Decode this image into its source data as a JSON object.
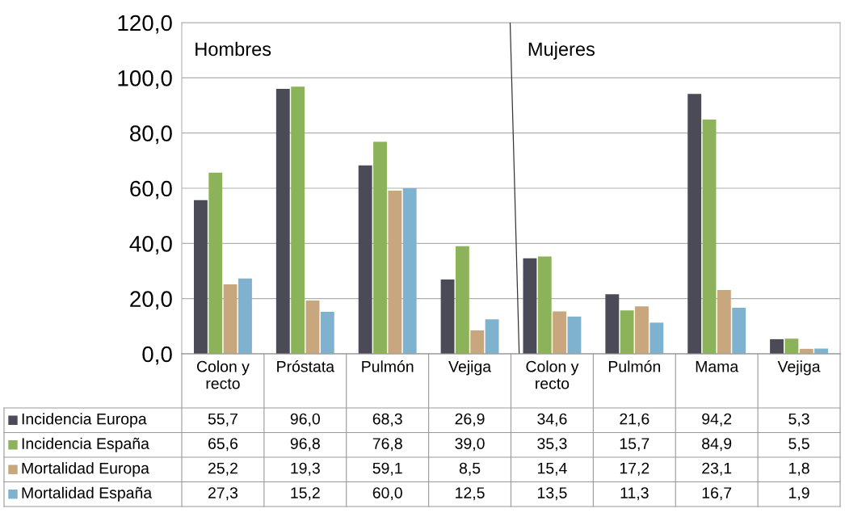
{
  "chart_data": {
    "type": "bar",
    "categories": [
      "Colon y\nrecto",
      "Próstata",
      "Pulmón",
      "Vejiga",
      "Colon y\nrecto",
      "Pulmón",
      "Mama",
      "Vejiga"
    ],
    "series": [
      {
        "name": "Incidencia Europa",
        "color": "#4b4b57",
        "values": [
          55.7,
          96.0,
          68.3,
          26.9,
          34.6,
          21.6,
          94.2,
          5.3
        ],
        "value_labels": [
          "55,7",
          "96,0",
          "68,3",
          "26,9",
          "34,6",
          "21,6",
          "94,2",
          "5,3"
        ]
      },
      {
        "name": "Incidencia España",
        "color": "#8db35a",
        "values": [
          65.6,
          96.8,
          76.8,
          39.0,
          35.3,
          15.7,
          84.9,
          5.5
        ],
        "value_labels": [
          "65,6",
          "96,8",
          "76,8",
          "39,0",
          "35,3",
          "15,7",
          "84,9",
          "5,5"
        ]
      },
      {
        "name": "Mortalidad Europa",
        "color": "#c8a67e",
        "values": [
          25.2,
          19.3,
          59.1,
          8.5,
          15.4,
          17.2,
          23.1,
          1.8
        ],
        "value_labels": [
          "25,2",
          "19,3",
          "59,1",
          "8,5",
          "15,4",
          "17,2",
          "23,1",
          "1,8"
        ]
      },
      {
        "name": "Mortalidad España",
        "color": "#7fb2cf",
        "values": [
          27.3,
          15.2,
          60.0,
          12.5,
          13.5,
          11.3,
          16.7,
          1.9
        ],
        "value_labels": [
          "27,3",
          "15,2",
          "60,0",
          "12,5",
          "13,5",
          "11,3",
          "16,7",
          "1,9"
        ]
      }
    ],
    "ylim": [
      0,
      120
    ],
    "yticks": [
      {
        "value": 0,
        "label": "0,0"
      },
      {
        "value": 20,
        "label": "20,0"
      },
      {
        "value": 40,
        "label": "40,0"
      },
      {
        "value": 60,
        "label": "60,0"
      },
      {
        "value": 80,
        "label": "80,0"
      },
      {
        "value": 100,
        "label": "100,0"
      },
      {
        "value": 120,
        "label": "120,0"
      }
    ],
    "grid": "y",
    "legend": "bottom left",
    "annotations": [
      "Hombres",
      "Mujeres"
    ]
  }
}
